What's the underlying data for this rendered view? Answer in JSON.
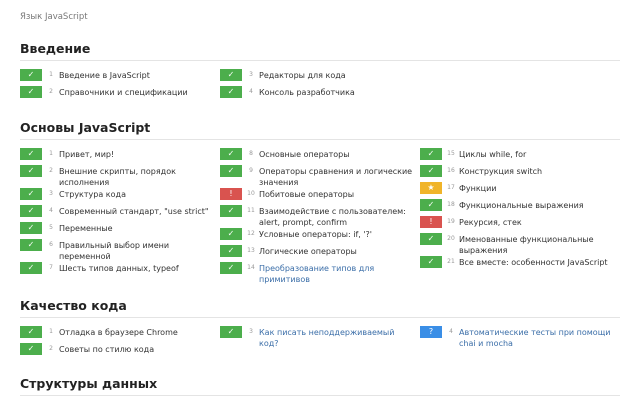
{
  "header": {
    "title": "Язык JavaScript"
  },
  "sections": [
    {
      "title": "Введение",
      "columns": [
        [
          {
            "number": "1",
            "label": "Введение в JavaScript",
            "status": "done"
          },
          {
            "number": "2",
            "label": "Справочники и спецификации",
            "status": "done"
          }
        ],
        [
          {
            "number": "3",
            "label": "Редакторы для кода",
            "status": "done"
          },
          {
            "number": "4",
            "label": "Консоль разработчика",
            "status": "done"
          }
        ],
        []
      ]
    },
    {
      "title": "Основы JavaScript",
      "columns": [
        [
          {
            "number": "1",
            "label": "Привет, мир!",
            "status": "done"
          },
          {
            "number": "2",
            "label": "Внешние скрипты, порядок исполнения",
            "status": "done"
          },
          {
            "number": "3",
            "label": "Структура кода",
            "status": "done"
          },
          {
            "number": "4",
            "label": "Современный стандарт, \"use strict\"",
            "status": "done"
          },
          {
            "number": "5",
            "label": "Переменные",
            "status": "done"
          },
          {
            "number": "6",
            "label": "Правильный выбор имени переменной",
            "status": "done"
          },
          {
            "number": "7",
            "label": "Шесть типов данных, typeof",
            "status": "done"
          }
        ],
        [
          {
            "number": "8",
            "label": "Основные операторы",
            "status": "done"
          },
          {
            "number": "9",
            "label": "Операторы сравнения и логические значения",
            "status": "done"
          },
          {
            "number": "10",
            "label": "Побитовые операторы",
            "status": "warning"
          },
          {
            "number": "11",
            "label": "Взаимодействие с пользователем: alert, prompt, confirm",
            "status": "done"
          },
          {
            "number": "12",
            "label": "Условные операторы: if, '?'",
            "status": "done"
          },
          {
            "number": "13",
            "label": "Логические операторы",
            "status": "done"
          },
          {
            "number": "14",
            "label": "Преобразование типов для примитивов",
            "status": "done",
            "color": "#3b6ea8"
          }
        ],
        [
          {
            "number": "15",
            "label": "Циклы while, for",
            "status": "done"
          },
          {
            "number": "16",
            "label": "Конструкция switch",
            "status": "done"
          },
          {
            "number": "17",
            "label": "Функции",
            "status": "star"
          },
          {
            "number": "18",
            "label": "Функциональные выражения",
            "status": "done"
          },
          {
            "number": "19",
            "label": "Рекурсия, стек",
            "status": "warning"
          },
          {
            "number": "20",
            "label": "Именованные функциональные выражения",
            "status": "done"
          },
          {
            "number": "21",
            "label": "Все вместе: особенности JavaScript",
            "status": "done"
          }
        ]
      ]
    },
    {
      "title": "Качество кода",
      "columns": [
        [
          {
            "number": "1",
            "label": "Отладка в браузере Chrome",
            "status": "done"
          },
          {
            "number": "2",
            "label": "Советы по стилю кода",
            "status": "done"
          }
        ],
        [
          {
            "number": "3",
            "label": "Как писать неподдерживаемый код?",
            "status": "done",
            "color": "#3b6ea8"
          }
        ],
        [
          {
            "number": "4",
            "label": "Автоматические тесты при помощи chai и mocha",
            "status": "question",
            "color": "#3b6ea8"
          }
        ]
      ]
    },
    {
      "title": "Структуры данных",
      "columns": [
        [],
        [],
        []
      ]
    }
  ]
}
